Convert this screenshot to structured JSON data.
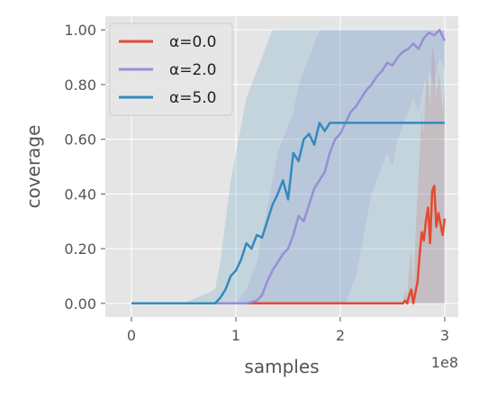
{
  "chart_data": {
    "type": "line",
    "xlabel": "samples",
    "ylabel": "coverage",
    "x_offset_label": "1e8",
    "xlim": [
      -0.25,
      3.13
    ],
    "ylim": [
      -0.05,
      1.05
    ],
    "x_ticks": [
      {
        "value": 0,
        "label": "0"
      },
      {
        "value": 1,
        "label": "1"
      },
      {
        "value": 2,
        "label": "2"
      },
      {
        "value": 3,
        "label": "3"
      }
    ],
    "y_ticks": [
      {
        "value": 0.0,
        "label": "0.00"
      },
      {
        "value": 0.2,
        "label": "0.20"
      },
      {
        "value": 0.4,
        "label": "0.40"
      },
      {
        "value": 0.6,
        "label": "0.60"
      },
      {
        "value": 0.8,
        "label": "0.80"
      },
      {
        "value": 1.0,
        "label": "1.00"
      }
    ],
    "grid": true,
    "legend_position": "top-left",
    "series": [
      {
        "name": "α=0.0",
        "color": "#e24a33",
        "x": [
          0,
          0.5,
          1.0,
          1.5,
          2.0,
          2.5,
          2.6,
          2.62,
          2.64,
          2.66,
          2.68,
          2.7,
          2.72,
          2.74,
          2.76,
          2.78,
          2.8,
          2.82,
          2.84,
          2.86,
          2.88,
          2.9,
          2.92,
          2.94,
          2.96,
          2.98,
          3.0
        ],
        "y": [
          0,
          0,
          0,
          0,
          0,
          0,
          0,
          0.01,
          0.0,
          0.03,
          0.05,
          0.0,
          0.04,
          0.08,
          0.18,
          0.26,
          0.23,
          0.3,
          0.35,
          0.22,
          0.41,
          0.43,
          0.28,
          0.33,
          0.29,
          0.25,
          0.31
        ],
        "band_upper": [
          0,
          0,
          0,
          0,
          0,
          0,
          0,
          0.05,
          0.02,
          0.12,
          0.2,
          0.05,
          0.25,
          0.4,
          0.55,
          0.7,
          0.62,
          0.8,
          0.85,
          0.7,
          0.95,
          0.9,
          0.75,
          0.85,
          0.8,
          0.7,
          0.8
        ],
        "band_lower": [
          0,
          0,
          0,
          0,
          0,
          0,
          0,
          0,
          0,
          0,
          0,
          0,
          0,
          0,
          0,
          0,
          0,
          0,
          0,
          0,
          0,
          0,
          0,
          0,
          0,
          0,
          0
        ]
      },
      {
        "name": "α=2.0",
        "color": "#988ed5",
        "x": [
          0,
          0.5,
          1.0,
          1.1,
          1.2,
          1.25,
          1.3,
          1.35,
          1.4,
          1.45,
          1.5,
          1.55,
          1.6,
          1.65,
          1.7,
          1.75,
          1.8,
          1.85,
          1.9,
          1.95,
          2.0,
          2.05,
          2.1,
          2.15,
          2.2,
          2.25,
          2.3,
          2.35,
          2.4,
          2.45,
          2.5,
          2.55,
          2.6,
          2.65,
          2.7,
          2.75,
          2.8,
          2.85,
          2.9,
          2.95,
          3.0
        ],
        "y": [
          0,
          0,
          0,
          0,
          0.01,
          0.03,
          0.08,
          0.12,
          0.15,
          0.18,
          0.2,
          0.25,
          0.32,
          0.3,
          0.36,
          0.42,
          0.45,
          0.48,
          0.55,
          0.6,
          0.62,
          0.66,
          0.7,
          0.72,
          0.75,
          0.78,
          0.8,
          0.83,
          0.85,
          0.88,
          0.87,
          0.9,
          0.92,
          0.93,
          0.95,
          0.93,
          0.97,
          0.99,
          0.98,
          1.0,
          0.96
        ],
        "band_upper": [
          0,
          0,
          0,
          0.05,
          0.15,
          0.25,
          0.35,
          0.45,
          0.55,
          0.6,
          0.65,
          0.7,
          0.8,
          0.85,
          0.9,
          0.95,
          1.0,
          1.0,
          1.0,
          1.0,
          1.0,
          1.0,
          1.0,
          1.0,
          1.0,
          1.0,
          1.0,
          1.0,
          1.0,
          1.0,
          1.0,
          1.0,
          1.0,
          1.0,
          1.0,
          1.0,
          1.0,
          1.0,
          1.0,
          1.0,
          1.0
        ],
        "band_lower": [
          0,
          0,
          0,
          0,
          0,
          0,
          0,
          0,
          0,
          0,
          0,
          0,
          0,
          0,
          0,
          0,
          0,
          0,
          0,
          0,
          0,
          0,
          0.05,
          0.1,
          0.2,
          0.3,
          0.4,
          0.45,
          0.5,
          0.55,
          0.5,
          0.6,
          0.65,
          0.7,
          0.75,
          0.7,
          0.8,
          0.85,
          0.8,
          0.9,
          0.85
        ]
      },
      {
        "name": "α=5.0",
        "color": "#348abd",
        "x": [
          0,
          0.5,
          0.8,
          0.85,
          0.9,
          0.95,
          1.0,
          1.05,
          1.1,
          1.15,
          1.2,
          1.25,
          1.3,
          1.35,
          1.4,
          1.45,
          1.5,
          1.55,
          1.6,
          1.65,
          1.7,
          1.75,
          1.8,
          1.85,
          1.9,
          1.95,
          2.0,
          2.1,
          2.2,
          2.3,
          2.4,
          2.5,
          2.6,
          2.7,
          2.8,
          2.9,
          3.0
        ],
        "y": [
          0,
          0,
          0,
          0.02,
          0.05,
          0.1,
          0.12,
          0.16,
          0.22,
          0.2,
          0.25,
          0.24,
          0.3,
          0.36,
          0.4,
          0.45,
          0.38,
          0.55,
          0.52,
          0.6,
          0.62,
          0.58,
          0.66,
          0.63,
          0.66,
          0.66,
          0.66,
          0.66,
          0.66,
          0.66,
          0.66,
          0.66,
          0.66,
          0.66,
          0.66,
          0.66,
          0.66
        ],
        "band_upper": [
          0,
          0,
          0.05,
          0.15,
          0.3,
          0.45,
          0.55,
          0.65,
          0.75,
          0.8,
          0.85,
          0.9,
          0.95,
          1.0,
          1.0,
          1.0,
          1.0,
          1.0,
          1.0,
          1.0,
          1.0,
          1.0,
          1.0,
          1.0,
          1.0,
          1.0,
          1.0,
          1.0,
          1.0,
          1.0,
          1.0,
          1.0,
          1.0,
          1.0,
          1.0,
          1.0,
          1.0
        ],
        "band_lower": [
          0,
          0,
          0,
          0,
          0,
          0,
          0,
          0,
          0,
          0,
          0,
          0,
          0,
          0,
          0,
          0,
          0,
          0,
          0,
          0,
          0,
          0,
          0,
          0,
          0,
          0,
          0,
          0,
          0,
          0,
          0,
          0,
          0,
          0,
          0,
          0,
          0
        ]
      }
    ]
  }
}
